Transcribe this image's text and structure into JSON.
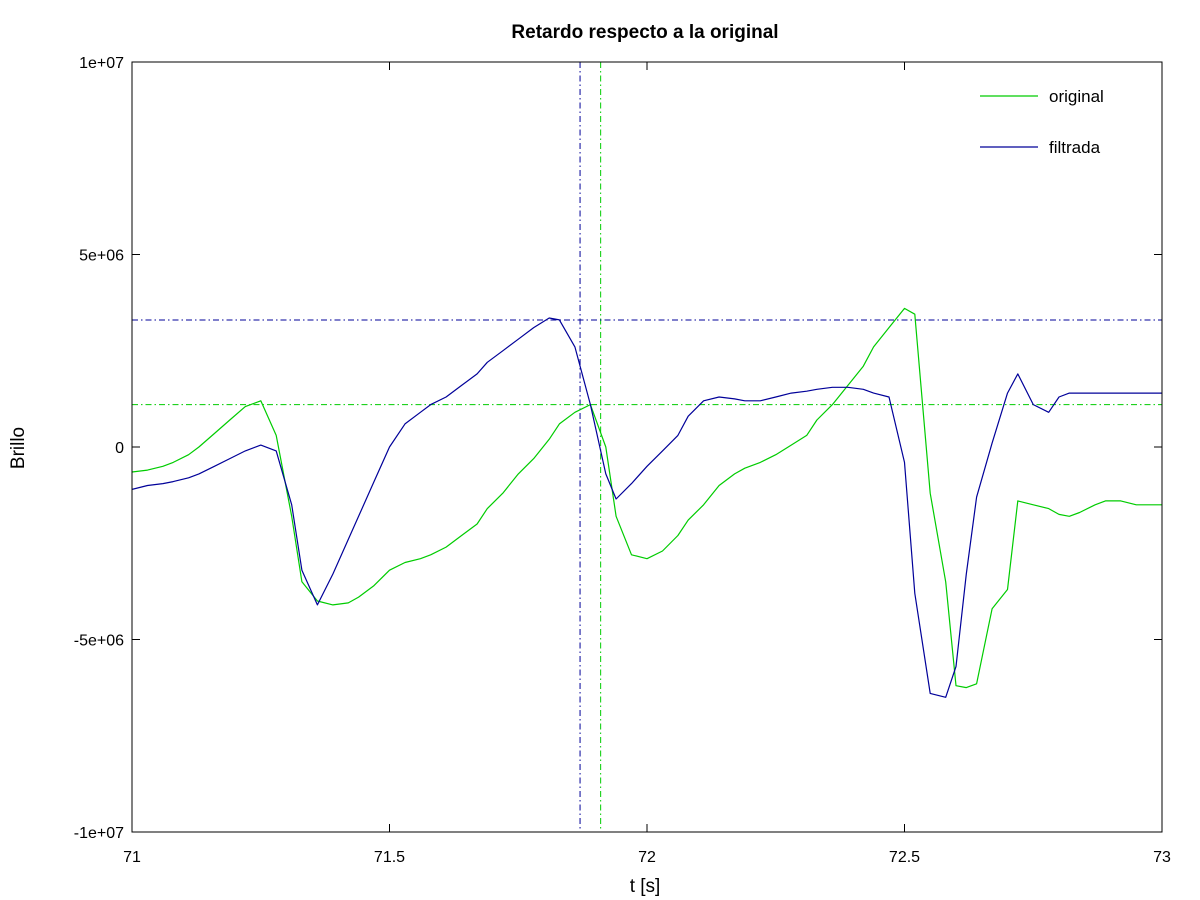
{
  "chart_data": {
    "type": "line",
    "title": "Retardo respecto a la original",
    "xlabel": "t [s]",
    "ylabel": "Brillo",
    "xlim": [
      71,
      73
    ],
    "ylim": [
      -10000000,
      10000000
    ],
    "xticks": [
      71,
      71.5,
      72,
      72.5,
      73
    ],
    "xtick_labels": [
      "71",
      "71.5",
      "72",
      "72.5",
      "73"
    ],
    "yticks": [
      -10000000,
      -5000000,
      0,
      5000000,
      10000000
    ],
    "ytick_labels": [
      "-1e+07",
      "-5e+06",
      "0",
      "5e+06",
      "1e+07"
    ],
    "grid": false,
    "legend_position": "top-right",
    "series": [
      {
        "name": "original",
        "color": "#00cc00",
        "x": [
          71.0,
          71.03,
          71.06,
          71.08,
          71.11,
          71.13,
          71.16,
          71.19,
          71.22,
          71.25,
          71.28,
          71.31,
          71.33,
          71.36,
          71.39,
          71.42,
          71.44,
          71.47,
          71.5,
          71.53,
          71.56,
          71.58,
          71.61,
          71.64,
          71.67,
          71.69,
          71.72,
          71.75,
          71.78,
          71.81,
          71.83,
          71.86,
          71.89,
          71.92,
          71.94,
          71.97,
          72.0,
          72.03,
          72.06,
          72.08,
          72.11,
          72.14,
          72.17,
          72.19,
          72.22,
          72.25,
          72.28,
          72.31,
          72.33,
          72.36,
          72.39,
          72.42,
          72.44,
          72.47,
          72.5,
          72.52,
          72.55,
          72.58,
          72.6,
          72.62,
          72.64,
          72.67,
          72.7,
          72.72,
          72.75,
          72.78,
          72.8,
          72.82,
          72.84,
          72.87,
          72.89,
          72.92,
          72.95,
          72.97,
          73.0
        ],
        "y": [
          -650000,
          -600000,
          -500000,
          -400000,
          -200000,
          0,
          350000,
          700000,
          1050000,
          1200000,
          300000,
          -1800000,
          -3500000,
          -4000000,
          -4100000,
          -4050000,
          -3900000,
          -3600000,
          -3200000,
          -3000000,
          -2900000,
          -2800000,
          -2600000,
          -2300000,
          -2000000,
          -1600000,
          -1200000,
          -700000,
          -300000,
          200000,
          600000,
          900000,
          1100000,
          0,
          -1800000,
          -2800000,
          -2900000,
          -2700000,
          -2300000,
          -1900000,
          -1500000,
          -1000000,
          -700000,
          -550000,
          -400000,
          -200000,
          50000,
          300000,
          700000,
          1100000,
          1600000,
          2100000,
          2600000,
          3100000,
          3600000,
          3450000,
          -1200000,
          -3500000,
          -6200000,
          -6250000,
          -6150000,
          -4200000,
          -3700000,
          -1400000,
          -1500000,
          -1600000,
          -1750000,
          -1800000,
          -1700000,
          -1500000,
          -1400000,
          -1400000,
          -1500000,
          -1500000,
          -1500000
        ]
      },
      {
        "name": "filtrada",
        "color": "#000099",
        "x": [
          71.0,
          71.03,
          71.06,
          71.08,
          71.11,
          71.13,
          71.16,
          71.19,
          71.22,
          71.25,
          71.28,
          71.31,
          71.33,
          71.36,
          71.39,
          71.42,
          71.44,
          71.47,
          71.5,
          71.53,
          71.56,
          71.58,
          71.61,
          71.64,
          71.67,
          71.69,
          71.72,
          71.75,
          71.78,
          71.81,
          71.83,
          71.86,
          71.89,
          71.92,
          71.94,
          71.97,
          72.0,
          72.03,
          72.06,
          72.08,
          72.11,
          72.14,
          72.17,
          72.19,
          72.22,
          72.25,
          72.28,
          72.31,
          72.33,
          72.36,
          72.39,
          72.42,
          72.44,
          72.47,
          72.5,
          72.52,
          72.55,
          72.58,
          72.6,
          72.62,
          72.64,
          72.67,
          72.7,
          72.72,
          72.75,
          72.78,
          72.8,
          72.82,
          72.84,
          72.87,
          72.89,
          72.92,
          72.95,
          72.97,
          73.0
        ],
        "y": [
          -1100000,
          -1000000,
          -950000,
          -900000,
          -800000,
          -700000,
          -500000,
          -300000,
          -100000,
          50000,
          -100000,
          -1500000,
          -3200000,
          -4100000,
          -3300000,
          -2400000,
          -1800000,
          -900000,
          0,
          600000,
          900000,
          1100000,
          1300000,
          1600000,
          1900000,
          2200000,
          2500000,
          2800000,
          3100000,
          3350000,
          3300000,
          2600000,
          1100000,
          -700000,
          -1350000,
          -950000,
          -500000,
          -100000,
          300000,
          800000,
          1200000,
          1300000,
          1250000,
          1200000,
          1200000,
          1300000,
          1400000,
          1450000,
          1500000,
          1550000,
          1550000,
          1500000,
          1400000,
          1300000,
          -400000,
          -3800000,
          -6400000,
          -6500000,
          -5700000,
          -3300000,
          -1300000,
          100000,
          1400000,
          1900000,
          1100000,
          900000,
          1300000,
          1400000,
          1400000,
          1400000,
          1400000,
          1400000,
          1400000,
          1400000,
          1400000
        ]
      }
    ],
    "reference_lines": [
      {
        "orientation": "vertical",
        "value": 71.87,
        "color": "#000099"
      },
      {
        "orientation": "vertical",
        "value": 71.91,
        "color": "#00cc00"
      },
      {
        "orientation": "horizontal",
        "value": 3300000,
        "color": "#000099"
      },
      {
        "orientation": "horizontal",
        "value": 1100000,
        "color": "#00cc00"
      }
    ]
  }
}
